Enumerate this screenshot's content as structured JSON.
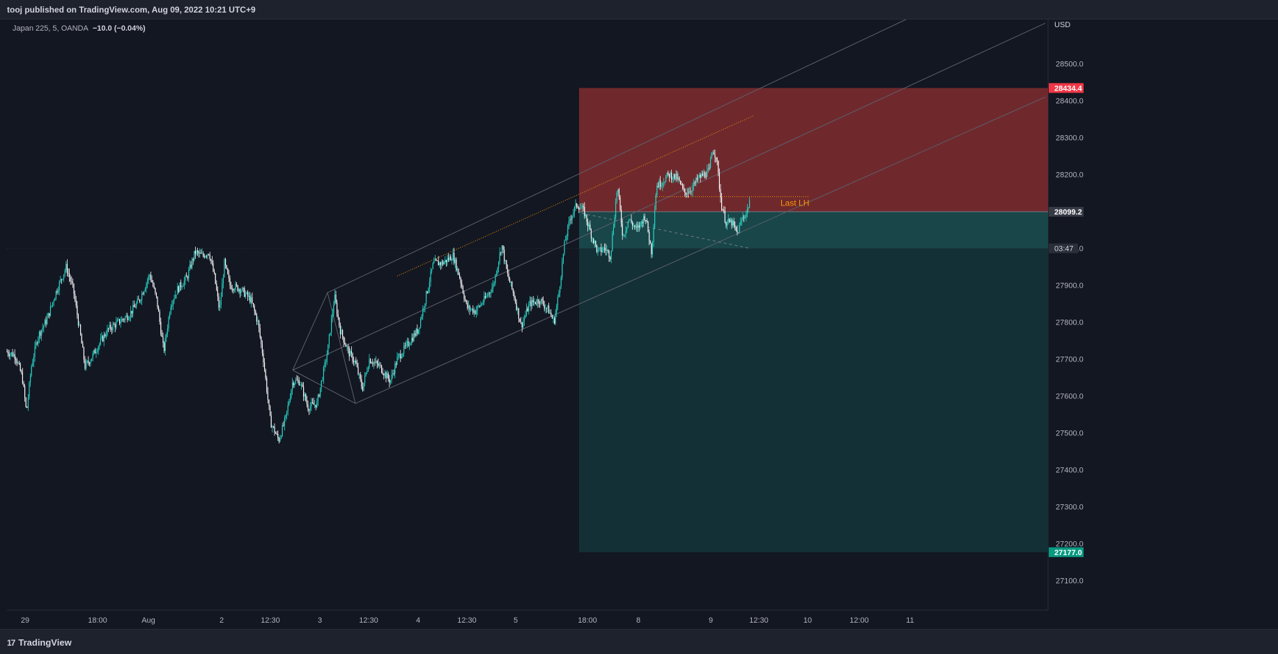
{
  "header": {
    "publish_line": "tooj published on TradingView.com, Aug 09, 2022 10:21 UTC+9"
  },
  "legend": {
    "symbol": "Japan 225, 5, OANDA",
    "change": "−10.0 (−0.04%)"
  },
  "footer": {
    "brand": "TradingView",
    "brand_mark": "17"
  },
  "annotation": {
    "last_lh": "Last LH"
  },
  "colors": {
    "background": "#131722",
    "up": "#26d7c8",
    "down": "#ffffff",
    "stop_zone": "#7a2b2f",
    "target_zone": "#133036",
    "stop_badge": "#f23645",
    "target_badge": "#089981",
    "entry_badge": "#363a45",
    "orange": "#ff9800"
  },
  "chart_data": {
    "type": "candlestick",
    "title": "",
    "y_unit": "USD",
    "ylim": [
      27020,
      28620
    ],
    "y_ticks": [
      "28500.0",
      "28400.0",
      "28300.0",
      "28200.0",
      "28100.0",
      "28000.0",
      "27900.0",
      "27800.0",
      "27700.0",
      "27600.0",
      "27500.0",
      "27400.0",
      "27300.0",
      "27200.0",
      "27100.0"
    ],
    "x_ticks": [
      "29",
      "18:00",
      "Aug",
      "2",
      "12:30",
      "3",
      "12:30",
      "4",
      "12:30",
      "5",
      "18:00",
      "8",
      "9",
      "12:30",
      "10",
      "12:00",
      "11"
    ],
    "price_path": [
      [
        0,
        27720
      ],
      [
        12,
        27710
      ],
      [
        22,
        27650
      ],
      [
        28,
        27555
      ],
      [
        35,
        27680
      ],
      [
        44,
        27760
      ],
      [
        58,
        27810
      ],
      [
        70,
        27880
      ],
      [
        85,
        27950
      ],
      [
        95,
        27890
      ],
      [
        105,
        27770
      ],
      [
        112,
        27680
      ],
      [
        120,
        27700
      ],
      [
        132,
        27740
      ],
      [
        145,
        27780
      ],
      [
        160,
        27800
      ],
      [
        175,
        27820
      ],
      [
        190,
        27860
      ],
      [
        205,
        27930
      ],
      [
        215,
        27860
      ],
      [
        225,
        27720
      ],
      [
        235,
        27850
      ],
      [
        245,
        27890
      ],
      [
        258,
        27920
      ],
      [
        270,
        27990
      ],
      [
        280,
        27980
      ],
      [
        290,
        27990
      ],
      [
        298,
        27920
      ],
      [
        305,
        27830
      ],
      [
        312,
        27960
      ],
      [
        320,
        27900
      ],
      [
        335,
        27890
      ],
      [
        350,
        27860
      ],
      [
        360,
        27800
      ],
      [
        368,
        27700
      ],
      [
        378,
        27530
      ],
      [
        390,
        27480
      ],
      [
        400,
        27540
      ],
      [
        410,
        27640
      ],
      [
        420,
        27640
      ],
      [
        432,
        27570
      ],
      [
        445,
        27580
      ],
      [
        460,
        27720
      ],
      [
        470,
        27870
      ],
      [
        478,
        27780
      ],
      [
        490,
        27720
      ],
      [
        500,
        27690
      ],
      [
        510,
        27620
      ],
      [
        520,
        27700
      ],
      [
        535,
        27680
      ],
      [
        550,
        27640
      ],
      [
        560,
        27700
      ],
      [
        575,
        27740
      ],
      [
        590,
        27780
      ],
      [
        600,
        27860
      ],
      [
        612,
        27960
      ],
      [
        625,
        27960
      ],
      [
        640,
        27980
      ],
      [
        650,
        27920
      ],
      [
        660,
        27840
      ],
      [
        672,
        27830
      ],
      [
        685,
        27860
      ],
      [
        698,
        27900
      ],
      [
        710,
        28010
      ],
      [
        718,
        27930
      ],
      [
        728,
        27870
      ],
      [
        738,
        27790
      ],
      [
        750,
        27850
      ],
      [
        765,
        27860
      ],
      [
        778,
        27830
      ],
      [
        785,
        27800
      ],
      [
        792,
        27880
      ],
      [
        800,
        28010
      ],
      [
        808,
        28080
      ],
      [
        818,
        28120
      ],
      [
        828,
        28100
      ],
      [
        838,
        28040
      ],
      [
        848,
        27990
      ],
      [
        858,
        28000
      ],
      [
        866,
        27980
      ],
      [
        876,
        28170
      ],
      [
        884,
        28030
      ],
      [
        892,
        28080
      ],
      [
        904,
        28050
      ],
      [
        916,
        28090
      ],
      [
        925,
        27990
      ],
      [
        932,
        28170
      ],
      [
        940,
        28180
      ],
      [
        950,
        28200
      ],
      [
        962,
        28190
      ],
      [
        972,
        28150
      ],
      [
        982,
        28160
      ],
      [
        992,
        28190
      ],
      [
        1000,
        28200
      ],
      [
        1008,
        28210
      ],
      [
        1012,
        28270
      ],
      [
        1018,
        28250
      ],
      [
        1025,
        28120
      ],
      [
        1032,
        28070
      ],
      [
        1040,
        28070
      ],
      [
        1048,
        28040
      ],
      [
        1055,
        28080
      ],
      [
        1062,
        28100
      ],
      [
        1068,
        28150
      ],
      [
        1072,
        28060
      ],
      [
        1076,
        28000
      ]
    ],
    "levels": {
      "stop": 28434.4,
      "entry": 28099.2,
      "target": 27177.0,
      "last_lh": 28140.0
    },
    "price_badges": {
      "stop": "28434.4",
      "entry": "28099.2",
      "target": "27177.0",
      "countdown": "03:47"
    },
    "position_tool": {
      "type": "short",
      "x_start": 831,
      "x_end": 1504
    },
    "channel_lines": [
      {
        "x1": 470,
        "p1": 27880,
        "x2": 1300,
        "p2": 28620
      },
      {
        "x1": 420,
        "p1": 27670,
        "x2": 1500,
        "p2": 28610
      },
      {
        "x1": 510,
        "p1": 27580,
        "x2": 1500,
        "p2": 28410
      }
    ],
    "orange_trend": {
      "x1": 570,
      "p1": 27925,
      "x2": 1082,
      "p2": 28360
    },
    "grid": false,
    "legend": "top-left"
  }
}
